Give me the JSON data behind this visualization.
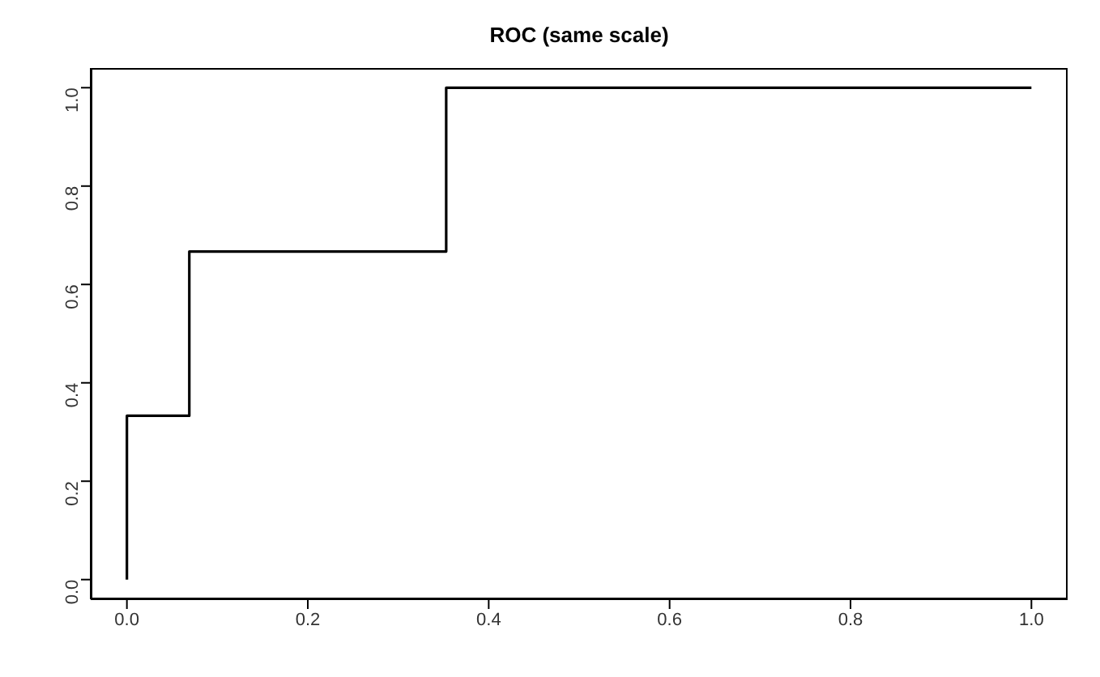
{
  "chart_data": {
    "type": "step",
    "title": "ROC (same scale)",
    "x": [
      0,
      0,
      0.069,
      0.353,
      1
    ],
    "series": [
      {
        "color": "#000000",
        "values": [
          0,
          0.333,
          0.667,
          1,
          1
        ]
      }
    ],
    "xlim": [
      -0.04,
      1.04
    ],
    "ylim": [
      -0.04,
      1.04
    ],
    "xticks": [
      {
        "value": 0,
        "label": "0.0"
      },
      0.2,
      0.4,
      0.6,
      0.8,
      {
        "value": 1,
        "label": "1.0"
      }
    ],
    "yticks": [
      {
        "value": 0,
        "label": "0.0"
      },
      0.2,
      0.4,
      0.6,
      0.8,
      {
        "value": 1,
        "label": "1.0"
      }
    ],
    "grid": false,
    "marker": "none",
    "line_style": "solid"
  }
}
